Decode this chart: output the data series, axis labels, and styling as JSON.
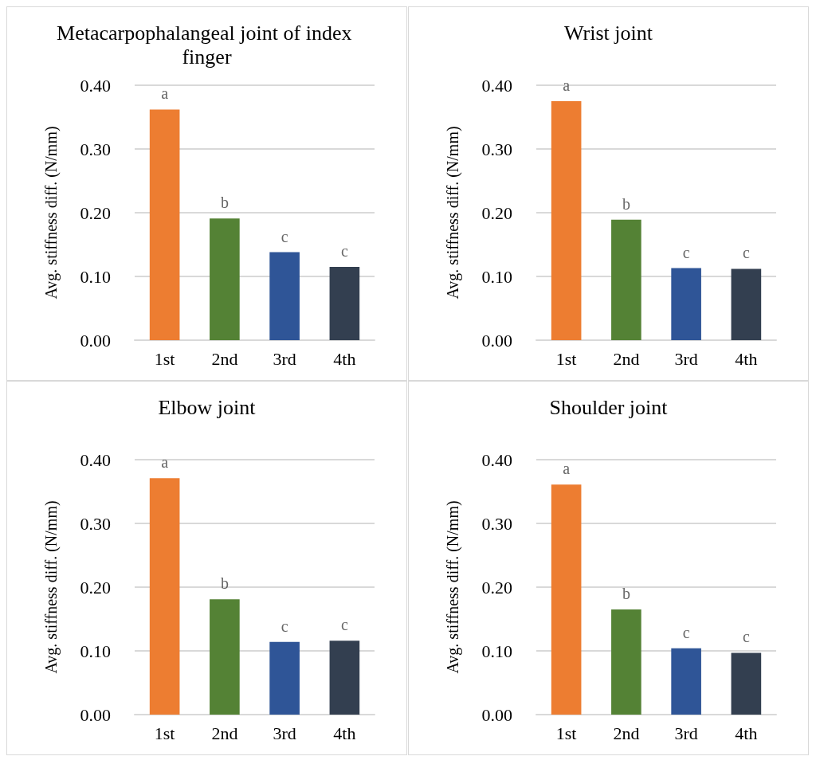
{
  "chart_data": [
    {
      "type": "bar",
      "title": "Metacarpophalangeal joint of index finger",
      "ylabel": "Avg. stiffness diff. (N/mm)",
      "categories": [
        "1st",
        "2nd",
        "3rd",
        "4th"
      ],
      "values": [
        0.362,
        0.191,
        0.138,
        0.115
      ],
      "colors": [
        "#ed7d31",
        "#548235",
        "#2f5597",
        "#333f50"
      ],
      "ylim": [
        0,
        0.4
      ],
      "yticks": [
        {
          "value": 0,
          "label": "0.00"
        },
        {
          "value": 0.1,
          "label": "0.10"
        },
        {
          "value": 0.2,
          "label": "0.20"
        },
        {
          "value": 0.3,
          "label": "0.30"
        },
        {
          "value": 0.4,
          "label": "0.40"
        }
      ],
      "grid": "y",
      "annotations": [
        {
          "text": "a",
          "x": "1st",
          "y": 0.362
        },
        {
          "text": "b",
          "x": "2nd",
          "y": 0.191
        },
        {
          "text": "c",
          "x": "3rd",
          "y": 0.138
        },
        {
          "text": "c",
          "x": "4th",
          "y": 0.115
        }
      ]
    },
    {
      "type": "bar",
      "title": "Wrist joint",
      "ylabel": "Avg. stiffness diff. (N/mm)",
      "categories": [
        "1st",
        "2nd",
        "3rd",
        "4th"
      ],
      "values": [
        0.375,
        0.189,
        0.113,
        0.112
      ],
      "colors": [
        "#ed7d31",
        "#548235",
        "#2f5597",
        "#333f50"
      ],
      "ylim": [
        0,
        0.4
      ],
      "yticks": [
        {
          "value": 0,
          "label": "0.00"
        },
        {
          "value": 0.1,
          "label": "0.10"
        },
        {
          "value": 0.2,
          "label": "0.20"
        },
        {
          "value": 0.3,
          "label": "0.30"
        },
        {
          "value": 0.4,
          "label": "0.40"
        }
      ],
      "grid": "y",
      "annotations": [
        {
          "text": "a",
          "x": "1st",
          "y": 0.375
        },
        {
          "text": "b",
          "x": "2nd",
          "y": 0.189
        },
        {
          "text": "c",
          "x": "3rd",
          "y": 0.113
        },
        {
          "text": "c",
          "x": "4th",
          "y": 0.112
        }
      ]
    },
    {
      "type": "bar",
      "title": "Elbow joint",
      "ylabel": "Avg. stiffness diff. (N/mm)",
      "categories": [
        "1st",
        "2nd",
        "3rd",
        "4th"
      ],
      "values": [
        0.371,
        0.181,
        0.114,
        0.116
      ],
      "colors": [
        "#ed7d31",
        "#548235",
        "#2f5597",
        "#333f50"
      ],
      "ylim": [
        0,
        0.4
      ],
      "yticks": [
        {
          "value": 0,
          "label": "0.00"
        },
        {
          "value": 0.1,
          "label": "0.10"
        },
        {
          "value": 0.2,
          "label": "0.20"
        },
        {
          "value": 0.3,
          "label": "0.30"
        },
        {
          "value": 0.4,
          "label": "0.40"
        }
      ],
      "grid": "y",
      "annotations": [
        {
          "text": "a",
          "x": "1st",
          "y": 0.371
        },
        {
          "text": "b",
          "x": "2nd",
          "y": 0.181
        },
        {
          "text": "c",
          "x": "3rd",
          "y": 0.114
        },
        {
          "text": "c",
          "x": "4th",
          "y": 0.116
        }
      ]
    },
    {
      "type": "bar",
      "title": "Shoulder joint",
      "ylabel": "Avg. stiffness diff. (N/mm)",
      "categories": [
        "1st",
        "2nd",
        "3rd",
        "4th"
      ],
      "values": [
        0.361,
        0.165,
        0.104,
        0.097
      ],
      "colors": [
        "#ed7d31",
        "#548235",
        "#2f5597",
        "#333f50"
      ],
      "ylim": [
        0,
        0.4
      ],
      "yticks": [
        {
          "value": 0,
          "label": "0.00"
        },
        {
          "value": 0.1,
          "label": "0.10"
        },
        {
          "value": 0.2,
          "label": "0.20"
        },
        {
          "value": 0.3,
          "label": "0.30"
        },
        {
          "value": 0.4,
          "label": "0.40"
        }
      ],
      "grid": "y",
      "annotations": [
        {
          "text": "a",
          "x": "1st",
          "y": 0.361
        },
        {
          "text": "b",
          "x": "2nd",
          "y": 0.165
        },
        {
          "text": "c",
          "x": "3rd",
          "y": 0.104
        },
        {
          "text": "c",
          "x": "4th",
          "y": 0.097
        }
      ]
    }
  ]
}
